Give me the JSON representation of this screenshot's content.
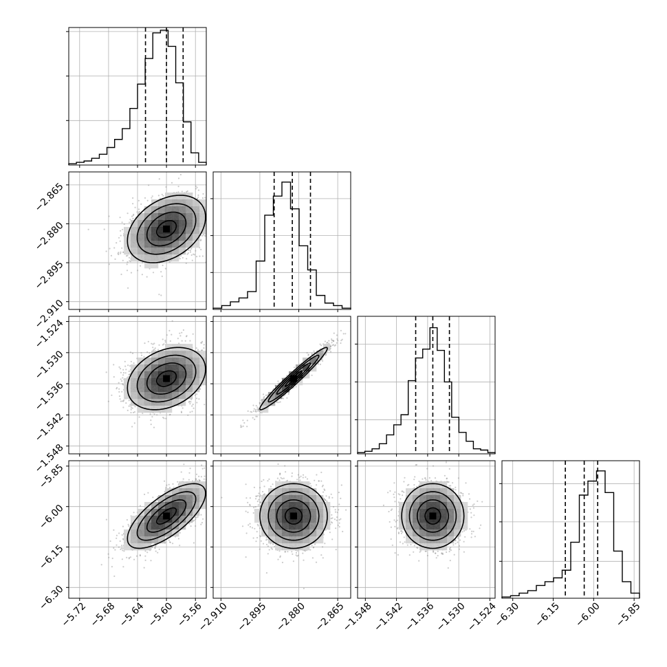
{
  "chart_data": {
    "type": "corner",
    "grid": true,
    "parameters": [
      {
        "ticks": [
          -5.72,
          -5.68,
          -5.64,
          -5.6,
          -5.56
        ],
        "tick_labels": [
          "−5.72",
          "−5.68",
          "−5.64",
          "−5.60",
          "−5.56"
        ],
        "range": [
          -5.735,
          -5.545
        ],
        "median": -5.6,
        "q16": -5.629,
        "q84": -5.577,
        "hist_counts": [
          0.01,
          0.02,
          0.03,
          0.05,
          0.08,
          0.13,
          0.19,
          0.27,
          0.42,
          0.6,
          0.79,
          0.98,
          1.0,
          0.88,
          0.61,
          0.32,
          0.09,
          0.02
        ],
        "hist_ylim": [
          0,
          1.02
        ],
        "hist_yticks": [
          0.33,
          0.66,
          0.99
        ]
      },
      {
        "ticks": [
          -2.91,
          -2.895,
          -2.88,
          -2.865
        ],
        "tick_labels": [
          "−2.910",
          "−2.895",
          "−2.880",
          "−2.865"
        ],
        "range": [
          -2.913,
          -2.86
        ],
        "median": -2.8825,
        "q16": -2.8895,
        "q84": -2.8755,
        "hist_counts": [
          0.01,
          0.03,
          0.06,
          0.09,
          0.14,
          0.38,
          0.74,
          0.89,
          1.0,
          0.79,
          0.5,
          0.31,
          0.11,
          0.05,
          0.03,
          0.01
        ],
        "hist_ylim": [
          0,
          1.08
        ],
        "hist_yticks": [
          0.29,
          0.58,
          0.87
        ]
      },
      {
        "ticks": [
          -1.548,
          -1.542,
          -1.536,
          -1.53,
          -1.524
        ],
        "tick_labels": [
          "−1.548",
          "−1.542",
          "−1.536",
          "−1.530",
          "−1.524"
        ],
        "range": [
          -1.5495,
          -1.523
        ],
        "median": -1.535,
        "q16": -1.5383,
        "q84": -1.5318,
        "hist_counts": [
          0.01,
          0.02,
          0.04,
          0.08,
          0.15,
          0.23,
          0.31,
          0.58,
          0.76,
          0.83,
          1.0,
          0.82,
          0.57,
          0.29,
          0.17,
          0.1,
          0.04,
          0.03,
          0.01
        ],
        "hist_ylim": [
          0,
          1.09
        ],
        "hist_yticks": [
          0.27,
          0.57,
          0.87
        ]
      },
      {
        "ticks": [
          -6.3,
          -6.15,
          -6.0,
          -5.85
        ],
        "tick_labels": [
          "−6.30",
          "−6.15",
          "−6.00",
          "−5.85"
        ],
        "range": [
          -6.34,
          -5.83
        ],
        "median": -6.035,
        "q16": -6.105,
        "q84": -5.985,
        "hist_counts": [
          0.01,
          0.02,
          0.04,
          0.06,
          0.1,
          0.13,
          0.16,
          0.22,
          0.44,
          0.81,
          0.92,
          1.0,
          0.83,
          0.37,
          0.13,
          0.04
        ],
        "hist_ylim": [
          0,
          1.08
        ],
        "hist_yticks": [
          0.29,
          0.6,
          0.9
        ]
      }
    ],
    "pairs": [
      {
        "row": 1,
        "col": 0,
        "mean": [
          -5.6,
          -2.882
        ],
        "sd": [
          0.027,
          0.0065
        ],
        "corr": 0.35
      },
      {
        "row": 2,
        "col": 0,
        "mean": [
          -5.6,
          -1.535
        ],
        "sd": [
          0.027,
          0.003
        ],
        "corr": 0.3
      },
      {
        "row": 2,
        "col": 1,
        "mean": [
          -2.882,
          -1.535
        ],
        "sd": [
          0.0065,
          0.003
        ],
        "corr": 0.97
      },
      {
        "row": 3,
        "col": 0,
        "mean": [
          -5.6,
          -6.035
        ],
        "sd": [
          0.027,
          0.06
        ],
        "corr": 0.7
      },
      {
        "row": 3,
        "col": 1,
        "mean": [
          -2.882,
          -6.035
        ],
        "sd": [
          0.0065,
          0.06
        ],
        "corr": 0.0
      },
      {
        "row": 3,
        "col": 2,
        "mean": [
          -1.535,
          -6.035
        ],
        "sd": [
          0.003,
          0.06
        ],
        "corr": 0.0
      }
    ]
  }
}
